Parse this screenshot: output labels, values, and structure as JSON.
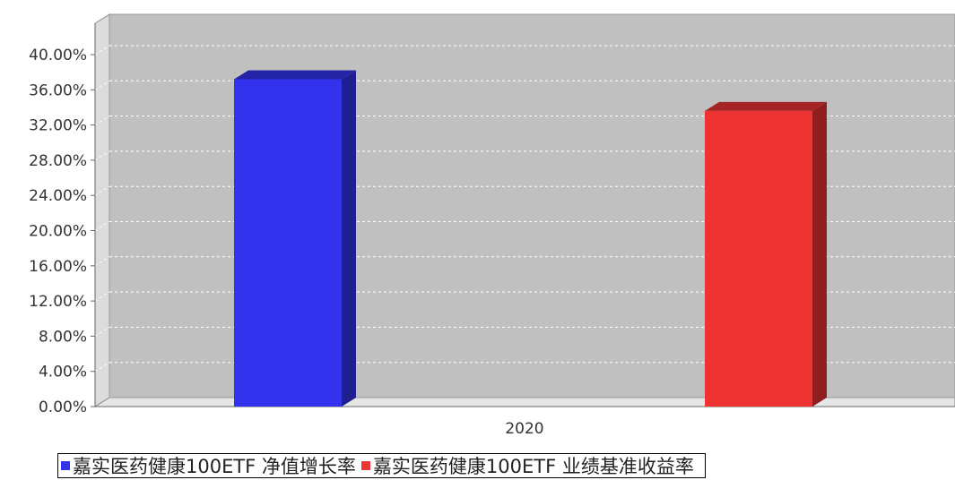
{
  "chart_data": {
    "type": "bar",
    "categories": [
      "2020"
    ],
    "series": [
      {
        "name": "嘉实医药健康100ETF 净值增长率",
        "values": [
          37.2
        ],
        "color": "#3333ee"
      },
      {
        "name": "嘉实医药健康100ETF 业绩基准收益率",
        "values": [
          33.6
        ],
        "color": "#ee3333"
      }
    ],
    "ylim": [
      0,
      40
    ],
    "yticks": [
      "0.00%",
      "4.00%",
      "8.00%",
      "12.00%",
      "16.00%",
      "20.00%",
      "24.00%",
      "28.00%",
      "32.00%",
      "36.00%",
      "40.00%"
    ],
    "grid": true,
    "legend_position": "bottom",
    "title": "",
    "xlabel": "",
    "ylabel": "",
    "colors": {
      "plot_background": "#c0c0c0",
      "wall": "#dcdcdc"
    }
  }
}
